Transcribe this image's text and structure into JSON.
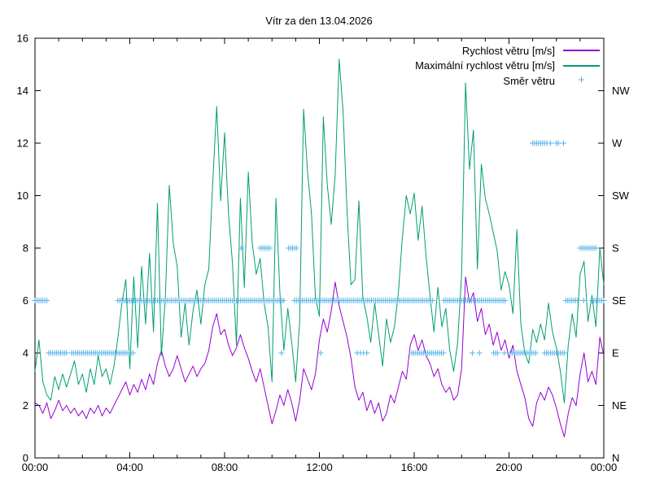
{
  "chart_data": {
    "type": "line",
    "title": "Vítr za den 13.04.2026",
    "xlabel": "",
    "ylabel": "",
    "xlim_hours": [
      0,
      24
    ],
    "ylim": [
      0,
      16
    ],
    "grid": false,
    "legend_position": "top-right-inside",
    "x_ticks": [
      {
        "h": 0,
        "label": "00:00"
      },
      {
        "h": 4,
        "label": "04:00"
      },
      {
        "h": 8,
        "label": "08:00"
      },
      {
        "h": 12,
        "label": "12:00"
      },
      {
        "h": 16,
        "label": "16:00"
      },
      {
        "h": 20,
        "label": "20:00"
      },
      {
        "h": 24,
        "label": "00:00"
      }
    ],
    "x_minor_tick_every_hours": 1,
    "y_ticks_left": [
      {
        "v": 0,
        "label": "0"
      },
      {
        "v": 2,
        "label": "2"
      },
      {
        "v": 4,
        "label": "4"
      },
      {
        "v": 6,
        "label": "6"
      },
      {
        "v": 8,
        "label": "8"
      },
      {
        "v": 10,
        "label": "10"
      },
      {
        "v": 12,
        "label": "12"
      },
      {
        "v": 14,
        "label": "14"
      },
      {
        "v": 16,
        "label": "16"
      }
    ],
    "y_ticks_right": [
      {
        "v": 0,
        "label": "N"
      },
      {
        "v": 2,
        "label": "NE"
      },
      {
        "v": 4,
        "label": "E"
      },
      {
        "v": 6,
        "label": "SE"
      },
      {
        "v": 8,
        "label": "S"
      },
      {
        "v": 10,
        "label": "SW"
      },
      {
        "v": 12,
        "label": "W"
      },
      {
        "v": 14,
        "label": "NW"
      }
    ],
    "dt_hours": 0.166667,
    "series": [
      {
        "name": "Rychlost větru [m/s]",
        "color": "#9400d3",
        "values": [
          2.1,
          2.0,
          1.7,
          2.1,
          1.5,
          1.8,
          2.2,
          1.8,
          2.0,
          1.7,
          1.9,
          1.6,
          1.8,
          1.5,
          1.9,
          1.7,
          2.0,
          1.6,
          1.9,
          1.7,
          2.0,
          2.3,
          2.6,
          2.9,
          2.4,
          2.8,
          2.5,
          3.0,
          2.6,
          3.2,
          2.8,
          3.6,
          4.1,
          3.5,
          3.1,
          3.4,
          3.9,
          3.4,
          2.9,
          3.2,
          3.5,
          3.1,
          3.4,
          3.6,
          4.1,
          5.0,
          5.5,
          4.7,
          4.9,
          4.3,
          3.9,
          4.2,
          4.7,
          4.2,
          3.8,
          3.3,
          2.9,
          3.4,
          2.7,
          2.0,
          1.3,
          1.8,
          2.4,
          2.0,
          2.6,
          2.1,
          1.4,
          2.2,
          3.4,
          3.0,
          2.6,
          3.2,
          4.5,
          5.3,
          4.8,
          5.6,
          6.7,
          5.8,
          5.2,
          4.6,
          3.8,
          2.7,
          2.2,
          2.5,
          1.8,
          2.2,
          1.7,
          2.1,
          1.4,
          1.7,
          2.4,
          2.1,
          2.7,
          3.3,
          3.0,
          4.3,
          4.7,
          4.1,
          4.5,
          3.9,
          3.6,
          3.1,
          3.4,
          2.8,
          2.5,
          2.7,
          2.2,
          2.4,
          3.4,
          6.9,
          5.9,
          6.3,
          5.2,
          5.7,
          4.7,
          5.1,
          4.3,
          4.8,
          4.1,
          4.5,
          3.8,
          4.3,
          3.3,
          2.8,
          2.3,
          1.5,
          1.2,
          2.1,
          2.5,
          2.2,
          2.7,
          2.4,
          1.9,
          1.3,
          0.8,
          1.7,
          2.3,
          2.0,
          3.2,
          4.0,
          2.9,
          3.3,
          2.8,
          4.6,
          3.9
        ]
      },
      {
        "name": "Maximální rychlost větru [m/s]",
        "color": "#009e73",
        "values": [
          3.3,
          4.5,
          2.9,
          2.4,
          2.2,
          3.1,
          2.6,
          3.2,
          2.7,
          3.2,
          3.7,
          2.8,
          3.2,
          2.5,
          3.4,
          2.8,
          3.9,
          3.1,
          3.4,
          2.8,
          3.5,
          4.6,
          5.9,
          6.8,
          3.4,
          6.9,
          4.2,
          7.3,
          5.1,
          7.8,
          4.8,
          9.7,
          3.9,
          6.1,
          10.4,
          8.2,
          7.3,
          4.6,
          5.9,
          4.3,
          5.6,
          6.4,
          5.1,
          6.6,
          7.2,
          10.5,
          13.4,
          9.8,
          12.4,
          9.3,
          7.4,
          4.3,
          9.9,
          6.5,
          10.9,
          8.2,
          7.0,
          7.6,
          5.9,
          5.0,
          2.9,
          9.9,
          6.3,
          4.1,
          5.7,
          4.4,
          2.9,
          5.2,
          13.3,
          10.9,
          9.3,
          6.1,
          5.4,
          13.0,
          10.4,
          8.9,
          10.8,
          15.2,
          13.2,
          9.4,
          6.6,
          6.8,
          9.8,
          6.1,
          5.4,
          4.4,
          5.9,
          4.7,
          3.5,
          5.3,
          4.4,
          5.0,
          6.3,
          8.4,
          10.0,
          9.3,
          10.1,
          8.3,
          9.6,
          7.7,
          6.2,
          4.8,
          6.5,
          5.0,
          5.7,
          4.1,
          3.3,
          4.4,
          7.0,
          14.3,
          11.0,
          12.5,
          7.2,
          11.2,
          9.9,
          9.3,
          8.6,
          7.9,
          6.4,
          7.1,
          6.6,
          5.5,
          8.7,
          5.1,
          4.0,
          3.6,
          4.9,
          4.4,
          5.1,
          4.5,
          5.9,
          4.8,
          4.2,
          3.3,
          2.1,
          4.3,
          5.5,
          4.6,
          7.0,
          7.5,
          5.2,
          6.2,
          5.0,
          8.0,
          6.6
        ]
      }
    ],
    "scatter": {
      "name": "Směr větru",
      "color": "#56b4e9",
      "marker": "plus",
      "value_axis": "right (compass: N=0, NE=2, E=4, SE=6, S=8, SW=10, W=12, NW=14)",
      "step_hours": 0.0833,
      "segments_start_end_value": [
        [
          0.0,
          0.58,
          6
        ],
        [
          0.58,
          1.4,
          4
        ],
        [
          1.55,
          4.2,
          4
        ],
        [
          3.5,
          10.55,
          6
        ],
        [
          10.95,
          16.8,
          6
        ],
        [
          8.7,
          8.7,
          8
        ],
        [
          9.5,
          9.95,
          8
        ],
        [
          10.7,
          11.1,
          8
        ],
        [
          10.4,
          10.4,
          4
        ],
        [
          12.05,
          12.05,
          4
        ],
        [
          13.6,
          14.0,
          4,
          0.133
        ],
        [
          15.9,
          17.3,
          4
        ],
        [
          17.25,
          19.9,
          6
        ],
        [
          18.45,
          18.45,
          4
        ],
        [
          18.75,
          18.75,
          4
        ],
        [
          19.35,
          19.55,
          4
        ],
        [
          19.8,
          19.8,
          4
        ],
        [
          20.05,
          21.2,
          4
        ],
        [
          21.5,
          22.35,
          4
        ],
        [
          21.0,
          21.5,
          12
        ],
        [
          21.6,
          21.6,
          12
        ],
        [
          21.75,
          21.75,
          12
        ],
        [
          22.0,
          22.1,
          12
        ],
        [
          22.3,
          22.3,
          12
        ],
        [
          22.4,
          22.95,
          6
        ],
        [
          23.15,
          23.15,
          6
        ],
        [
          23.5,
          24.0,
          6
        ],
        [
          23.0,
          23.7,
          8
        ]
      ]
    },
    "colors": {
      "axis": "#000000",
      "background": "#ffffff",
      "speed_line": "#9400d3",
      "max_speed_line": "#009e73",
      "direction_marker": "#56b4e9"
    }
  }
}
